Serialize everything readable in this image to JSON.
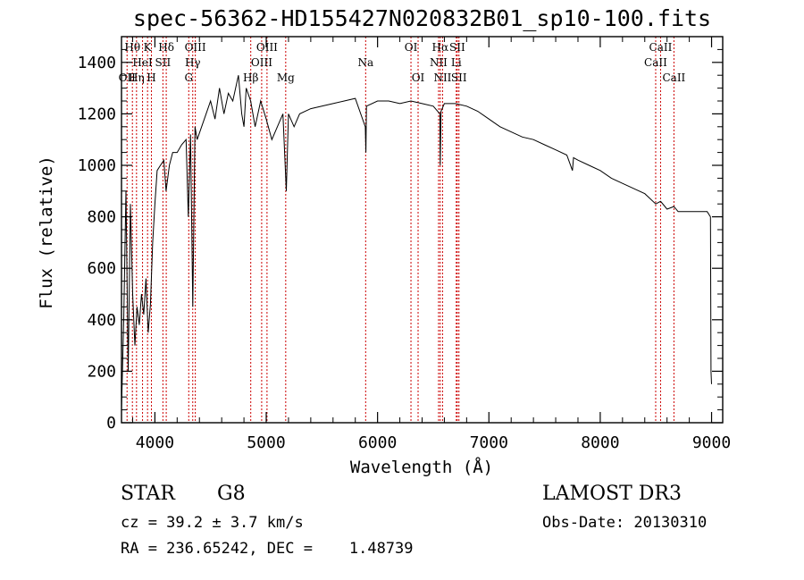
{
  "chart_data": {
    "type": "line",
    "title": "spec-56362-HD155427N020832B01_sp10-100.fits",
    "xlabel": "Wavelength (Å)",
    "ylabel": "Flux (relative)",
    "xlim": [
      3700,
      9100
    ],
    "ylim": [
      0,
      1500
    ],
    "xticks": [
      4000,
      5000,
      6000,
      7000,
      8000,
      9000
    ],
    "yticks": [
      0,
      200,
      400,
      600,
      800,
      1000,
      1200,
      1400
    ],
    "series": [
      {
        "x": [
          3700,
          3720,
          3740,
          3760,
          3780,
          3800,
          3820,
          3840,
          3860,
          3880,
          3900,
          3920,
          3940,
          3960,
          3980,
          4000,
          4020,
          4050,
          4080,
          4100,
          4130,
          4160,
          4200,
          4240,
          4280,
          4300,
          4320,
          4340,
          4360,
          4380,
          4420,
          4460,
          4500,
          4540,
          4580,
          4620,
          4660,
          4700,
          4750,
          4780,
          4800,
          4820,
          4860,
          4900,
          4950,
          5000,
          5050,
          5100,
          5150,
          5180,
          5200,
          5250,
          5300,
          5400,
          5500,
          5600,
          5700,
          5800,
          5890,
          5895,
          5900,
          6000,
          6100,
          6200,
          6300,
          6400,
          6500,
          6560,
          6563,
          6570,
          6600,
          6700,
          6800,
          6900,
          7000,
          7100,
          7200,
          7300,
          7400,
          7500,
          7600,
          7700,
          7750,
          7760,
          7800,
          7900,
          8000,
          8100,
          8200,
          8300,
          8400,
          8498,
          8542,
          8600,
          8662,
          8700,
          8800,
          8900,
          8960,
          8990,
          8995,
          9000
        ],
        "y": [
          50,
          400,
          900,
          200,
          850,
          500,
          300,
          450,
          380,
          500,
          420,
          560,
          350,
          460,
          700,
          850,
          980,
          1000,
          1020,
          900,
          1000,
          1050,
          1050,
          1080,
          1100,
          800,
          1120,
          450,
          1150,
          1100,
          1150,
          1200,
          1250,
          1180,
          1300,
          1200,
          1280,
          1250,
          1350,
          1200,
          1150,
          1300,
          1250,
          1150,
          1250,
          1180,
          1100,
          1150,
          1200,
          900,
          1200,
          1150,
          1200,
          1220,
          1230,
          1240,
          1250,
          1260,
          1150,
          1050,
          1230,
          1250,
          1250,
          1240,
          1250,
          1240,
          1230,
          1200,
          1000,
          1210,
          1240,
          1240,
          1230,
          1210,
          1180,
          1150,
          1130,
          1110,
          1100,
          1080,
          1060,
          1040,
          980,
          1030,
          1020,
          1000,
          980,
          950,
          930,
          910,
          890,
          850,
          860,
          830,
          840,
          820,
          820,
          820,
          820,
          800,
          200,
          150
        ]
      }
    ],
    "lines": [
      {
        "wl": 3750,
        "labels": [
          {
            "t": "OII",
            "r": 2
          }
        ],
        "alt": "OII"
      },
      {
        "wl": 3798,
        "labels": [
          {
            "t": "Hθ",
            "r": 0
          }
        ]
      },
      {
        "wl": 3835,
        "labels": [
          {
            "t": "Hη",
            "r": 2
          }
        ]
      },
      {
        "wl": 3889,
        "labels": [
          {
            "t": "HeI",
            "r": 1
          }
        ]
      },
      {
        "wl": 3934,
        "labels": [
          {
            "t": "K",
            "r": 0
          }
        ]
      },
      {
        "wl": 3969,
        "labels": [
          {
            "t": "H",
            "r": 2
          }
        ]
      },
      {
        "wl": 4072,
        "labels": [
          {
            "t": "SII",
            "r": 1
          }
        ]
      },
      {
        "wl": 4102,
        "labels": [
          {
            "t": "Hδ",
            "r": 0
          }
        ]
      },
      {
        "wl": 4304,
        "labels": [
          {
            "t": "G",
            "r": 2
          }
        ]
      },
      {
        "wl": 4340,
        "labels": [
          {
            "t": "Hγ",
            "r": 1
          }
        ]
      },
      {
        "wl": 4363,
        "labels": [
          {
            "t": "OIII",
            "r": 0
          }
        ]
      },
      {
        "wl": 4861,
        "labels": [
          {
            "t": "Hβ",
            "r": 2
          }
        ]
      },
      {
        "wl": 4959,
        "labels": [
          {
            "t": "OIII",
            "r": 1
          }
        ]
      },
      {
        "wl": 5007,
        "labels": [
          {
            "t": "OIII",
            "r": 0
          }
        ]
      },
      {
        "wl": 5175,
        "labels": [
          {
            "t": "Mg",
            "r": 2
          }
        ]
      },
      {
        "wl": 5893,
        "labels": [
          {
            "t": "Na",
            "r": 1
          }
        ]
      },
      {
        "wl": 6300,
        "labels": [
          {
            "t": "OI",
            "r": 0
          }
        ]
      },
      {
        "wl": 6364,
        "labels": [
          {
            "t": "OI",
            "r": 2
          }
        ]
      },
      {
        "wl": 6548,
        "labels": [
          {
            "t": "NII",
            "r": 1
          }
        ]
      },
      {
        "wl": 6563,
        "labels": [
          {
            "t": "Hα",
            "r": 0
          }
        ]
      },
      {
        "wl": 6584,
        "labels": [
          {
            "t": "NII",
            "r": 2
          }
        ]
      },
      {
        "wl": 6707,
        "labels": [
          {
            "t": "Li",
            "r": 1
          }
        ]
      },
      {
        "wl": 6716,
        "labels": [
          {
            "t": "SII",
            "r": 0
          }
        ]
      },
      {
        "wl": 6731,
        "labels": [
          {
            "t": "SII",
            "r": 2
          }
        ]
      },
      {
        "wl": 8498,
        "labels": [
          {
            "t": "CaII",
            "r": 1
          }
        ]
      },
      {
        "wl": 8542,
        "labels": [
          {
            "t": "CaII",
            "r": 0
          }
        ]
      },
      {
        "wl": 8662,
        "labels": [
          {
            "t": "CaII",
            "r": 2
          }
        ]
      }
    ],
    "line_color": "#cc0000"
  },
  "info": {
    "class": "STAR",
    "subclass": "G8",
    "survey": "LAMOST DR3",
    "cz": "cz = 39.2 ± 3.7 km/s",
    "obsdate": "Obs-Date: 20130310",
    "radec": "RA = 236.65242, DEC =    1.48739"
  }
}
